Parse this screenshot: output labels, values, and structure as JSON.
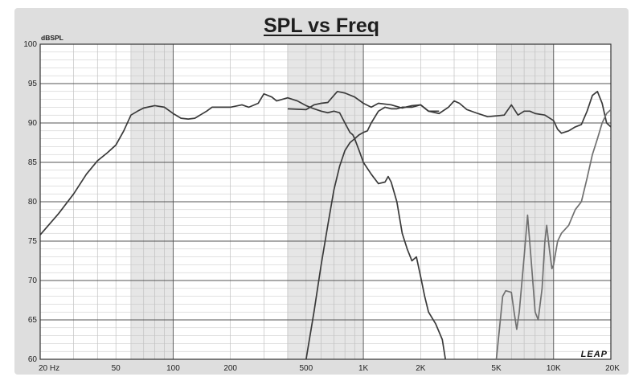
{
  "chart_data": {
    "type": "line",
    "title": "SPL vs Freq",
    "ylabel": "dBSPL",
    "xlabel": "",
    "x_scale": "log",
    "xlim": [
      20,
      20000
    ],
    "ylim": [
      60,
      100
    ],
    "grid": true,
    "legend": "none",
    "watermark": "LEAP",
    "x_tick_labels": [
      {
        "value": 20,
        "label": "20 Hz"
      },
      {
        "value": 50,
        "label": "50"
      },
      {
        "value": 100,
        "label": "100"
      },
      {
        "value": 200,
        "label": "200"
      },
      {
        "value": 500,
        "label": "500"
      },
      {
        "value": 1000,
        "label": "1K"
      },
      {
        "value": 2000,
        "label": "2K"
      },
      {
        "value": 5000,
        "label": "5K"
      },
      {
        "value": 10000,
        "label": "10K"
      },
      {
        "value": 20000,
        "label": "20K"
      }
    ],
    "y_tick_labels": [
      {
        "value": 100,
        "label": "100"
      },
      {
        "value": 95,
        "label": "95"
      },
      {
        "value": 90,
        "label": "90"
      },
      {
        "value": 85,
        "label": "85"
      },
      {
        "value": 80,
        "label": "80"
      },
      {
        "value": 75,
        "label": "75"
      },
      {
        "value": 70,
        "label": "70"
      },
      {
        "value": 65,
        "label": "65"
      },
      {
        "value": 60,
        "label": "60"
      }
    ],
    "shaded_bands": [
      [
        60,
        100
      ],
      [
        400,
        1000
      ],
      [
        5000,
        10000
      ]
    ],
    "series": [
      {
        "color": "#3a3a3a",
        "points": [
          [
            20,
            75.8
          ],
          [
            25,
            78.5
          ],
          [
            30,
            81
          ],
          [
            35,
            83.5
          ],
          [
            40,
            85.2
          ],
          [
            45,
            86.2
          ],
          [
            50,
            87.2
          ],
          [
            55,
            89
          ],
          [
            60,
            91
          ],
          [
            65,
            91.5
          ],
          [
            70,
            91.9
          ],
          [
            80,
            92.2
          ],
          [
            90,
            92
          ],
          [
            100,
            91.2
          ],
          [
            110,
            90.6
          ],
          [
            120,
            90.5
          ],
          [
            130,
            90.6
          ],
          [
            150,
            91.5
          ],
          [
            160,
            92
          ],
          [
            200,
            92
          ],
          [
            230,
            92.3
          ],
          [
            250,
            92
          ],
          [
            280,
            92.5
          ],
          [
            300,
            93.7
          ],
          [
            330,
            93.3
          ],
          [
            350,
            92.8
          ],
          [
            400,
            93.2
          ],
          [
            450,
            92.8
          ],
          [
            500,
            92.2
          ],
          [
            550,
            91.8
          ],
          [
            600,
            91.5
          ],
          [
            650,
            91.3
          ],
          [
            700,
            91.5
          ],
          [
            750,
            91.3
          ],
          [
            800,
            90
          ],
          [
            850,
            88.8
          ],
          [
            880,
            88.5
          ],
          [
            900,
            88
          ],
          [
            950,
            86.5
          ],
          [
            1000,
            85
          ],
          [
            1100,
            83.5
          ],
          [
            1200,
            82.3
          ],
          [
            1300,
            82.5
          ],
          [
            1350,
            83.2
          ],
          [
            1400,
            82.5
          ],
          [
            1500,
            80
          ],
          [
            1600,
            76
          ],
          [
            1700,
            74
          ],
          [
            1800,
            72.5
          ],
          [
            1900,
            73
          ],
          [
            2000,
            70.5
          ],
          [
            2100,
            68
          ],
          [
            2200,
            66
          ],
          [
            2400,
            64.5
          ],
          [
            2600,
            62.5
          ],
          [
            2700,
            60
          ]
        ]
      },
      {
        "color": "#3a3a3a",
        "points": [
          [
            500,
            60
          ],
          [
            550,
            66
          ],
          [
            600,
            72
          ],
          [
            650,
            77
          ],
          [
            700,
            81.5
          ],
          [
            750,
            84.5
          ],
          [
            800,
            86.5
          ],
          [
            850,
            87.5
          ],
          [
            900,
            88
          ],
          [
            950,
            88.5
          ],
          [
            1000,
            88.8
          ],
          [
            1050,
            89
          ],
          [
            1100,
            90
          ],
          [
            1200,
            91.5
          ],
          [
            1300,
            92
          ],
          [
            1400,
            91.8
          ],
          [
            1500,
            91.8
          ],
          [
            1600,
            92
          ],
          [
            1800,
            92
          ],
          [
            2000,
            92.3
          ],
          [
            2200,
            91.5
          ],
          [
            2500,
            91.2
          ],
          [
            2800,
            92
          ],
          [
            3000,
            92.8
          ],
          [
            3200,
            92.5
          ],
          [
            3500,
            91.7
          ],
          [
            4000,
            91.2
          ],
          [
            4500,
            90.8
          ],
          [
            5000,
            90.9
          ],
          [
            5500,
            91
          ],
          [
            6000,
            92.3
          ],
          [
            6500,
            91
          ],
          [
            7000,
            91.5
          ],
          [
            7500,
            91.5
          ],
          [
            8000,
            91.2
          ],
          [
            9000,
            91
          ],
          [
            10000,
            90.3
          ],
          [
            10500,
            89.2
          ],
          [
            11000,
            88.7
          ],
          [
            12000,
            89
          ],
          [
            13000,
            89.5
          ],
          [
            14000,
            89.8
          ],
          [
            15000,
            91.5
          ],
          [
            16000,
            93.5
          ],
          [
            17000,
            94
          ],
          [
            18000,
            92.5
          ],
          [
            19000,
            90
          ],
          [
            20000,
            89.5
          ]
        ]
      },
      {
        "color": "#3a3a3a",
        "points": [
          [
            400,
            91.8
          ],
          [
            500,
            91.7
          ],
          [
            550,
            92.3
          ],
          [
            600,
            92.5
          ],
          [
            650,
            92.6
          ],
          [
            700,
            93.5
          ],
          [
            730,
            94
          ],
          [
            800,
            93.8
          ],
          [
            900,
            93.3
          ],
          [
            1000,
            92.5
          ],
          [
            1100,
            92
          ],
          [
            1200,
            92.5
          ],
          [
            1400,
            92.3
          ],
          [
            1600,
            91.9
          ],
          [
            1800,
            92.2
          ],
          [
            2000,
            92.3
          ],
          [
            2200,
            91.5
          ],
          [
            2500,
            91.5
          ]
        ]
      },
      {
        "color": "#707070",
        "points": [
          [
            5000,
            60
          ],
          [
            5200,
            64
          ],
          [
            5400,
            68
          ],
          [
            5600,
            68.7
          ],
          [
            6000,
            68.5
          ],
          [
            6200,
            66
          ],
          [
            6400,
            63.8
          ],
          [
            6600,
            66
          ],
          [
            7000,
            73
          ],
          [
            7300,
            78.3
          ],
          [
            7600,
            73
          ],
          [
            8000,
            66
          ],
          [
            8300,
            65
          ],
          [
            8700,
            69
          ],
          [
            9000,
            75
          ],
          [
            9200,
            77
          ],
          [
            9500,
            74
          ],
          [
            9800,
            71.5
          ],
          [
            10000,
            72
          ],
          [
            10500,
            75
          ],
          [
            11000,
            76
          ],
          [
            12000,
            77
          ],
          [
            13000,
            79
          ],
          [
            14000,
            80
          ],
          [
            15000,
            83
          ],
          [
            16000,
            86
          ],
          [
            17000,
            88
          ],
          [
            18000,
            90
          ],
          [
            19000,
            91.2
          ],
          [
            20000,
            91.7
          ]
        ]
      }
    ]
  }
}
